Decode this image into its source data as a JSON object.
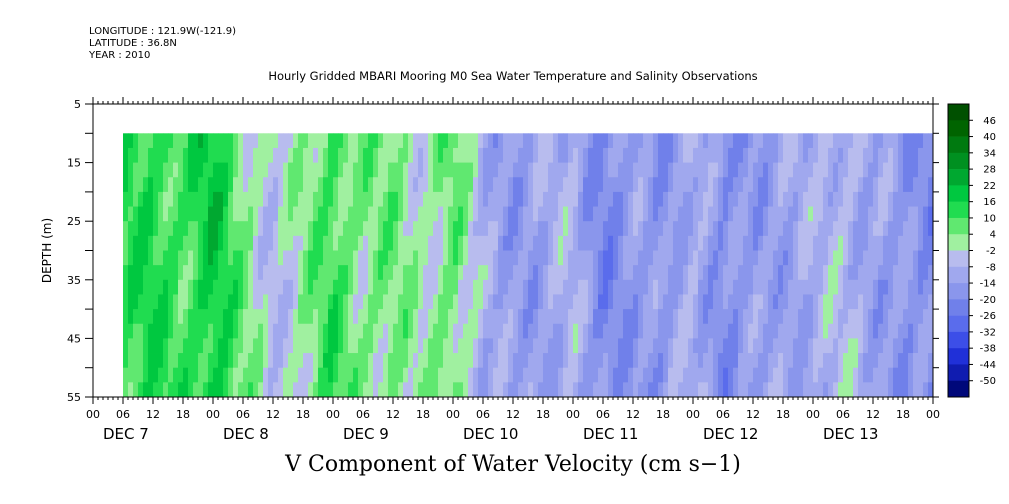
{
  "header": {
    "longitude": "LONGITUDE : 121.9W(-121.9)",
    "latitude": "LATITUDE : 36.8N",
    "year": "YEAR : 2010"
  },
  "plot_title": "Hourly Gridded MBARI Mooring M0 Sea Water Temperature and Salinity Observations",
  "main_title": "V Component of Water Velocity (cm s−1)",
  "chart_data": {
    "type": "heatmap",
    "title": "Hourly Gridded MBARI Mooring M0 Sea Water Temperature and Salinity Observations",
    "xlabel": "",
    "ylabel": "DEPTH (m)",
    "units": "cm s-1",
    "x_range_hours": [
      0,
      168
    ],
    "data_x_start_hour": 6,
    "y_range_m": [
      5,
      55
    ],
    "data_depth_range_m": [
      10,
      55
    ],
    "y_ticks": [
      5,
      15,
      25,
      35,
      45,
      55
    ],
    "y_reversed": true,
    "x_hour_labels": [
      "00",
      "06",
      "12",
      "18",
      "00",
      "06",
      "12",
      "18",
      "00",
      "06",
      "12",
      "18",
      "00",
      "06",
      "12",
      "18",
      "00",
      "06",
      "12",
      "18",
      "00",
      "06",
      "12",
      "18",
      "00",
      "06",
      "12",
      "18",
      "00"
    ],
    "day_labels": [
      "DEC  7",
      "DEC  8",
      "DEC  9",
      "DEC 10",
      "DEC 11",
      "DEC 12",
      "DEC 13"
    ],
    "colorbar": {
      "labels": [
        "46",
        "40",
        "34",
        "28",
        "22",
        "16",
        "10",
        "4",
        "-2",
        "-8",
        "-14",
        "-20",
        "-26",
        "-32",
        "-38",
        "-44",
        "-50"
      ],
      "range": [
        -50,
        49
      ],
      "colors": [
        "#005000",
        "#006400",
        "#007a10",
        "#009020",
        "#00a830",
        "#00c840",
        "#20dc50",
        "#60e870",
        "#a0f0a0",
        "#b8bcee",
        "#a0a8ee",
        "#8a96ec",
        "#7080ea",
        "#5a6cec",
        "#3c4ee8",
        "#2030d8",
        "#101cb0",
        "#00087a"
      ]
    },
    "v_velocity_by_time": [
      {
        "hour": 6,
        "v": 12
      },
      {
        "hour": 12,
        "v": 14
      },
      {
        "hour": 18,
        "v": 10
      },
      {
        "hour": 24,
        "v": 18
      },
      {
        "hour": 30,
        "v": 6
      },
      {
        "hour": 36,
        "v": -4
      },
      {
        "hour": 42,
        "v": 2
      },
      {
        "hour": 48,
        "v": 12
      },
      {
        "hour": 54,
        "v": 4
      },
      {
        "hour": 60,
        "v": 6
      },
      {
        "hour": 66,
        "v": 0
      },
      {
        "hour": 72,
        "v": 8
      },
      {
        "hour": 78,
        "v": -8
      },
      {
        "hour": 84,
        "v": -12
      },
      {
        "hour": 90,
        "v": -10
      },
      {
        "hour": 96,
        "v": -6
      },
      {
        "hour": 102,
        "v": -18
      },
      {
        "hour": 108,
        "v": -12
      },
      {
        "hour": 114,
        "v": -14
      },
      {
        "hour": 120,
        "v": -6
      },
      {
        "hour": 126,
        "v": -16
      },
      {
        "hour": 132,
        "v": -12
      },
      {
        "hour": 138,
        "v": -10
      },
      {
        "hour": 144,
        "v": -8
      },
      {
        "hour": 150,
        "v": -4
      },
      {
        "hour": 156,
        "v": -10
      },
      {
        "hour": 162,
        "v": -14
      },
      {
        "hour": 168,
        "v": -16
      }
    ]
  }
}
